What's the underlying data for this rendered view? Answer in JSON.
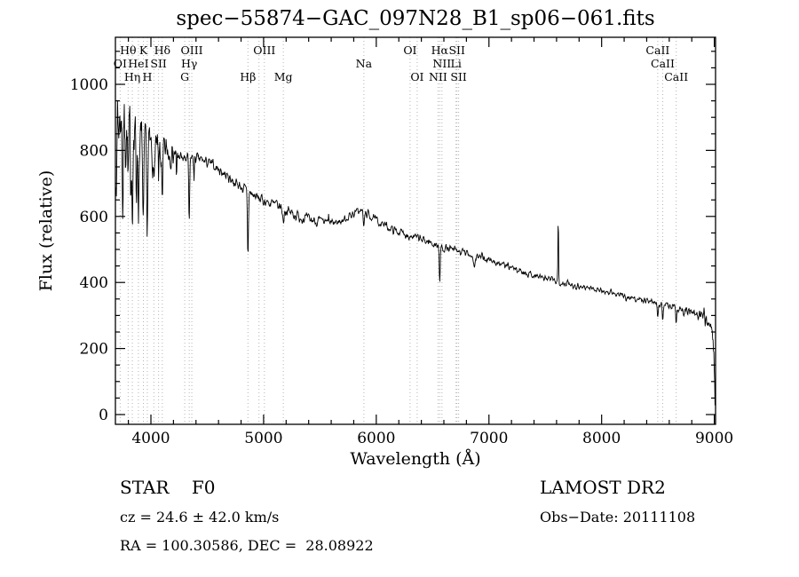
{
  "title": "spec−55874−GAC_097N28_B1_sp06−061.fits",
  "annotations": {
    "class_label": "STAR    F0",
    "survey": "LAMOST DR2",
    "cz": "cz = 24.6 ± 42.0 km/s",
    "obs_date": "Obs−Date: 20111108",
    "coords": "RA = 100.30586, DEC =  28.08922"
  },
  "colors": {
    "line": "#000000",
    "guide": "#b4b4b4",
    "background": "#ffffff"
  },
  "chart_data": {
    "type": "line",
    "title": "spec−55874−GAC_097N28_B1_sp06−061.fits",
    "xlabel": "Wavelength (Å)",
    "ylabel": "Flux (relative)",
    "xlim": [
      3685,
      9012
    ],
    "ylim": [
      -30,
      1142
    ],
    "x_ticks": [
      4000,
      5000,
      6000,
      7000,
      8000,
      9000
    ],
    "y_ticks": [
      0,
      200,
      400,
      600,
      800,
      1000
    ],
    "x_start": 3690,
    "x_end": 9008,
    "grid": false,
    "legend": "none",
    "continuum_anchors": [
      [
        3690,
        750
      ],
      [
        3705,
        870
      ],
      [
        3725,
        900
      ],
      [
        3745,
        890
      ],
      [
        3765,
        870
      ],
      [
        3790,
        845
      ],
      [
        3820,
        830
      ],
      [
        3850,
        825
      ],
      [
        3880,
        820
      ],
      [
        3910,
        815
      ],
      [
        3940,
        800
      ],
      [
        3970,
        800
      ],
      [
        4000,
        810
      ],
      [
        4030,
        795
      ],
      [
        4060,
        790
      ],
      [
        4100,
        795
      ],
      [
        4150,
        800
      ],
      [
        4200,
        792
      ],
      [
        4250,
        782
      ],
      [
        4300,
        772
      ],
      [
        4350,
        780
      ],
      [
        4400,
        776
      ],
      [
        4450,
        770
      ],
      [
        4500,
        764
      ],
      [
        4550,
        754
      ],
      [
        4600,
        744
      ],
      [
        4650,
        730
      ],
      [
        4700,
        716
      ],
      [
        4750,
        702
      ],
      [
        4800,
        690
      ],
      [
        4850,
        676
      ],
      [
        4900,
        666
      ],
      [
        4950,
        656
      ],
      [
        5000,
        648
      ],
      [
        5050,
        641
      ],
      [
        5100,
        635
      ],
      [
        5150,
        628
      ],
      [
        5200,
        618
      ],
      [
        5250,
        610
      ],
      [
        5300,
        602
      ],
      [
        5350,
        596
      ],
      [
        5400,
        590
      ],
      [
        5450,
        588
      ],
      [
        5500,
        585
      ],
      [
        5550,
        582
      ],
      [
        5600,
        580
      ],
      [
        5650,
        582
      ],
      [
        5700,
        588
      ],
      [
        5750,
        598
      ],
      [
        5800,
        610
      ],
      [
        5850,
        618
      ],
      [
        5900,
        612
      ],
      [
        5950,
        600
      ],
      [
        6000,
        588
      ],
      [
        6050,
        578
      ],
      [
        6100,
        568
      ],
      [
        6150,
        560
      ],
      [
        6200,
        553
      ],
      [
        6250,
        548
      ],
      [
        6300,
        542
      ],
      [
        6350,
        536
      ],
      [
        6400,
        530
      ],
      [
        6450,
        525
      ],
      [
        6500,
        518
      ],
      [
        6550,
        512
      ],
      [
        6600,
        505
      ],
      [
        6650,
        500
      ],
      [
        6700,
        496
      ],
      [
        6750,
        492
      ],
      [
        6800,
        488
      ],
      [
        6850,
        483
      ],
      [
        6900,
        478
      ],
      [
        6950,
        473
      ],
      [
        7000,
        468
      ],
      [
        7050,
        462
      ],
      [
        7100,
        456
      ],
      [
        7150,
        450
      ],
      [
        7200,
        444
      ],
      [
        7250,
        438
      ],
      [
        7300,
        432
      ],
      [
        7350,
        427
      ],
      [
        7400,
        422
      ],
      [
        7450,
        417
      ],
      [
        7500,
        412
      ],
      [
        7550,
        408
      ],
      [
        7600,
        404
      ],
      [
        7650,
        400
      ],
      [
        7700,
        396
      ],
      [
        7750,
        392
      ],
      [
        7800,
        389
      ],
      [
        7850,
        386
      ],
      [
        7900,
        383
      ],
      [
        7950,
        380
      ],
      [
        8000,
        376
      ],
      [
        8050,
        372
      ],
      [
        8100,
        367
      ],
      [
        8150,
        362
      ],
      [
        8200,
        358
      ],
      [
        8250,
        354
      ],
      [
        8300,
        351
      ],
      [
        8350,
        348
      ],
      [
        8400,
        345
      ],
      [
        8450,
        342
      ],
      [
        8500,
        338
      ],
      [
        8550,
        334
      ],
      [
        8600,
        330
      ],
      [
        8650,
        326
      ],
      [
        8700,
        320
      ],
      [
        8750,
        314
      ],
      [
        8800,
        308
      ],
      [
        8850,
        300
      ],
      [
        8900,
        296
      ],
      [
        8940,
        292
      ],
      [
        8970,
        270
      ],
      [
        8990,
        220
      ],
      [
        9000,
        150
      ],
      [
        9008,
        15
      ]
    ],
    "absorption_features": [
      {
        "c": 3750,
        "d": 260,
        "w": 5
      },
      {
        "c": 3798,
        "d": 160,
        "w": 5
      },
      {
        "c": 3820,
        "d": 200,
        "w": 4
      },
      {
        "c": 3835,
        "d": 180,
        "w": 5
      },
      {
        "c": 3870,
        "d": 150,
        "w": 4
      },
      {
        "c": 3889,
        "d": 210,
        "w": 5
      },
      {
        "c": 3933,
        "d": 260,
        "w": 7
      },
      {
        "c": 3968,
        "d": 220,
        "w": 7
      },
      {
        "c": 4026,
        "d": 120,
        "w": 5
      },
      {
        "c": 4068,
        "d": 90,
        "w": 4
      },
      {
        "c": 4101,
        "d": 190,
        "w": 6
      },
      {
        "c": 4227,
        "d": 90,
        "w": 4
      },
      {
        "c": 4340,
        "d": 200,
        "w": 6
      },
      {
        "c": 4383,
        "d": 70,
        "w": 4
      },
      {
        "c": 4861,
        "d": 190,
        "w": 6
      },
      {
        "c": 5175,
        "d": 40,
        "w": 8
      },
      {
        "c": 5890,
        "d": 45,
        "w": 7
      },
      {
        "c": 6563,
        "d": 115,
        "w": 6
      },
      {
        "c": 6870,
        "d": 35,
        "w": 9
      },
      {
        "c": 8498,
        "d": 35,
        "w": 6
      },
      {
        "c": 8542,
        "d": 45,
        "w": 6
      },
      {
        "c": 8662,
        "d": 45,
        "w": 6
      }
    ],
    "emission_features": [
      {
        "c": 5577,
        "a": 25,
        "w": 3
      },
      {
        "c": 7615,
        "a": 190,
        "w": 4
      }
    ],
    "noise": {
      "seed": 7,
      "step": 3.5
    },
    "guide_lines": [
      3727,
      3798,
      3835,
      3889,
      3933,
      3968,
      4026,
      4068,
      4101,
      4300,
      4340,
      4363,
      4861,
      4959,
      5007,
      5175,
      5890,
      6300,
      6363,
      6548,
      6563,
      6583,
      6708,
      6716,
      6731,
      8498,
      8542,
      8662
    ],
    "spectral_lines": [
      {
        "text": "Hθ",
        "wl": 3798,
        "row": 1
      },
      {
        "text": "K",
        "wl": 3933,
        "row": 1
      },
      {
        "text": "Hδ",
        "wl": 4101,
        "row": 1
      },
      {
        "text": "OIII",
        "wl": 4363,
        "row": 1
      },
      {
        "text": "OIII",
        "wl": 5007,
        "row": 1
      },
      {
        "text": "OI",
        "wl": 6300,
        "row": 1
      },
      {
        "text": "Hα",
        "wl": 6563,
        "row": 1
      },
      {
        "text": "SII",
        "wl": 6716,
        "row": 1
      },
      {
        "text": "CaII",
        "wl": 8498,
        "row": 1
      },
      {
        "text": "OI",
        "wl": 3727,
        "row": 2
      },
      {
        "text": "HeI",
        "wl": 3889,
        "row": 2
      },
      {
        "text": "SII",
        "wl": 4068,
        "row": 2
      },
      {
        "text": "Hγ",
        "wl": 4340,
        "row": 2
      },
      {
        "text": "Na",
        "wl": 5890,
        "row": 2
      },
      {
        "text": "NII",
        "wl": 6583,
        "row": 2
      },
      {
        "text": "Li",
        "wl": 6708,
        "row": 2
      },
      {
        "text": "CaII",
        "wl": 8542,
        "row": 2
      },
      {
        "text": "Hη",
        "wl": 3835,
        "row": 3
      },
      {
        "text": "H",
        "wl": 3968,
        "row": 3
      },
      {
        "text": "G",
        "wl": 4300,
        "row": 3
      },
      {
        "text": "Hβ",
        "wl": 4861,
        "row": 3
      },
      {
        "text": "Mg",
        "wl": 5175,
        "row": 3
      },
      {
        "text": "OI",
        "wl": 6363,
        "row": 3
      },
      {
        "text": "NII",
        "wl": 6548,
        "row": 3
      },
      {
        "text": "SII",
        "wl": 6731,
        "row": 3
      },
      {
        "text": "CaII",
        "wl": 8662,
        "row": 3
      }
    ]
  }
}
